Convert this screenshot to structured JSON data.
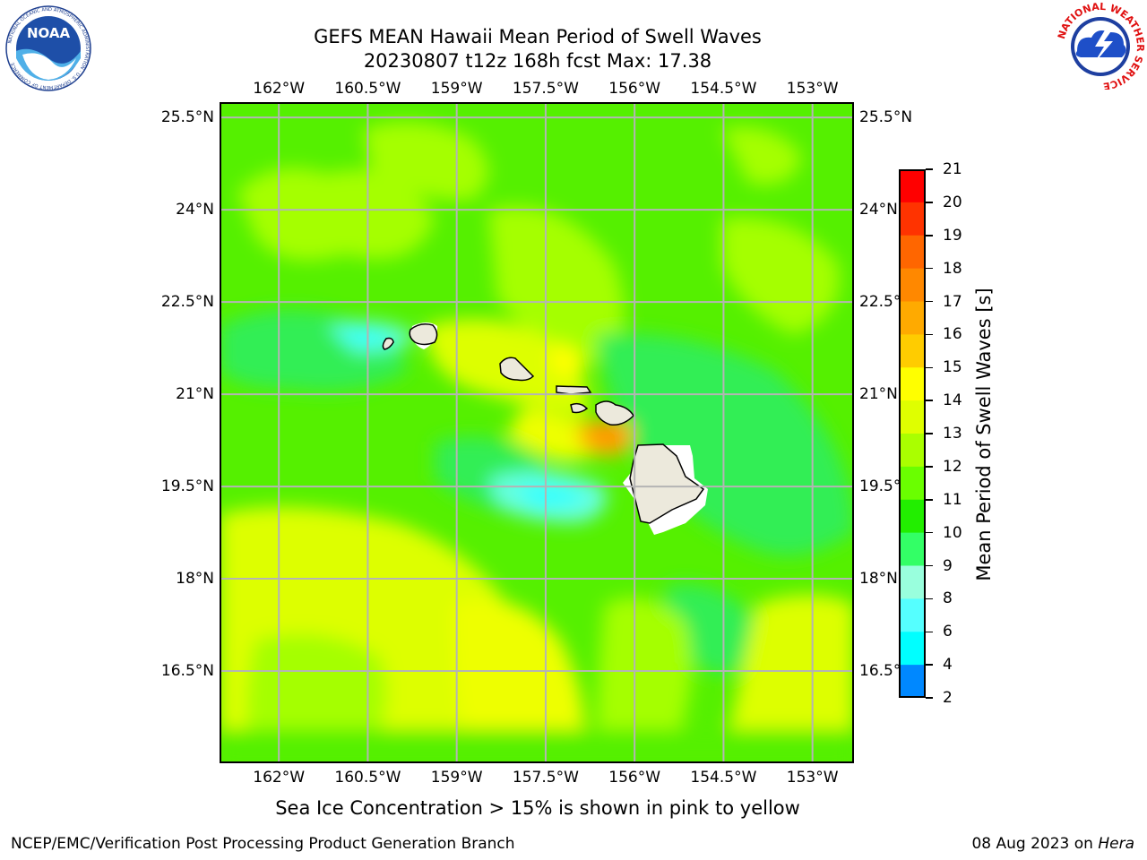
{
  "title": {
    "line1": "GEFS MEAN Hawaii Mean Period of Swell Waves",
    "line2": "20230807 t12z 168h fcst   Max: 17.38"
  },
  "map": {
    "lon_labels": [
      "162°W",
      "160.5°W",
      "159°W",
      "157.5°W",
      "156°W",
      "154.5°W",
      "153°W"
    ],
    "lat_labels": [
      "25.5°N",
      "24°N",
      "22.5°N",
      "21°N",
      "19.5°N",
      "18°N",
      "16.5°N"
    ],
    "lon_values": [
      -162,
      -160.5,
      -159,
      -157.5,
      -156,
      -154.5,
      -153
    ],
    "lat_values": [
      25.5,
      24,
      22.5,
      21,
      19.5,
      18,
      16.5
    ],
    "extent": {
      "lon_min": -163.0,
      "lon_max": -152.3,
      "lat_min": 15.0,
      "lat_max": 25.75
    },
    "land_color": "#ece9dc",
    "grid_color": "#b4b4b4"
  },
  "colorbar": {
    "title": "Mean Period of Swell Waves [s]",
    "ticks": [
      "21",
      "20",
      "19",
      "18",
      "17",
      "16",
      "15",
      "14",
      "13",
      "12",
      "11",
      "10",
      "9",
      "8",
      "6",
      "4",
      "2"
    ],
    "colors": [
      "#ff0000",
      "#ff3300",
      "#ff6600",
      "#ff8800",
      "#ffaa00",
      "#ffcc00",
      "#ffff00",
      "#dfff00",
      "#aaff00",
      "#6aff00",
      "#22ee00",
      "#33ff66",
      "#99ffdd",
      "#55ffff",
      "#00ffff",
      "#0088ff",
      "#0000ff"
    ]
  },
  "note": "Sea Ice Concentration > 15% is shown in pink to yellow",
  "footer": {
    "left": "NCEP/EMC/Verification Post Processing Product Generation Branch",
    "date": "08 Aug 2023 on ",
    "machine": "Hera"
  },
  "logos": {
    "noaa_text": "NOAA",
    "noaa_ring_text": "NATIONAL OCEANIC AND ATMOSPHERIC ADMINISTRATION · U.S. DEPARTMENT OF COMMERCE",
    "nws_ring_text": "NATIONAL WEATHER SERVICE"
  }
}
